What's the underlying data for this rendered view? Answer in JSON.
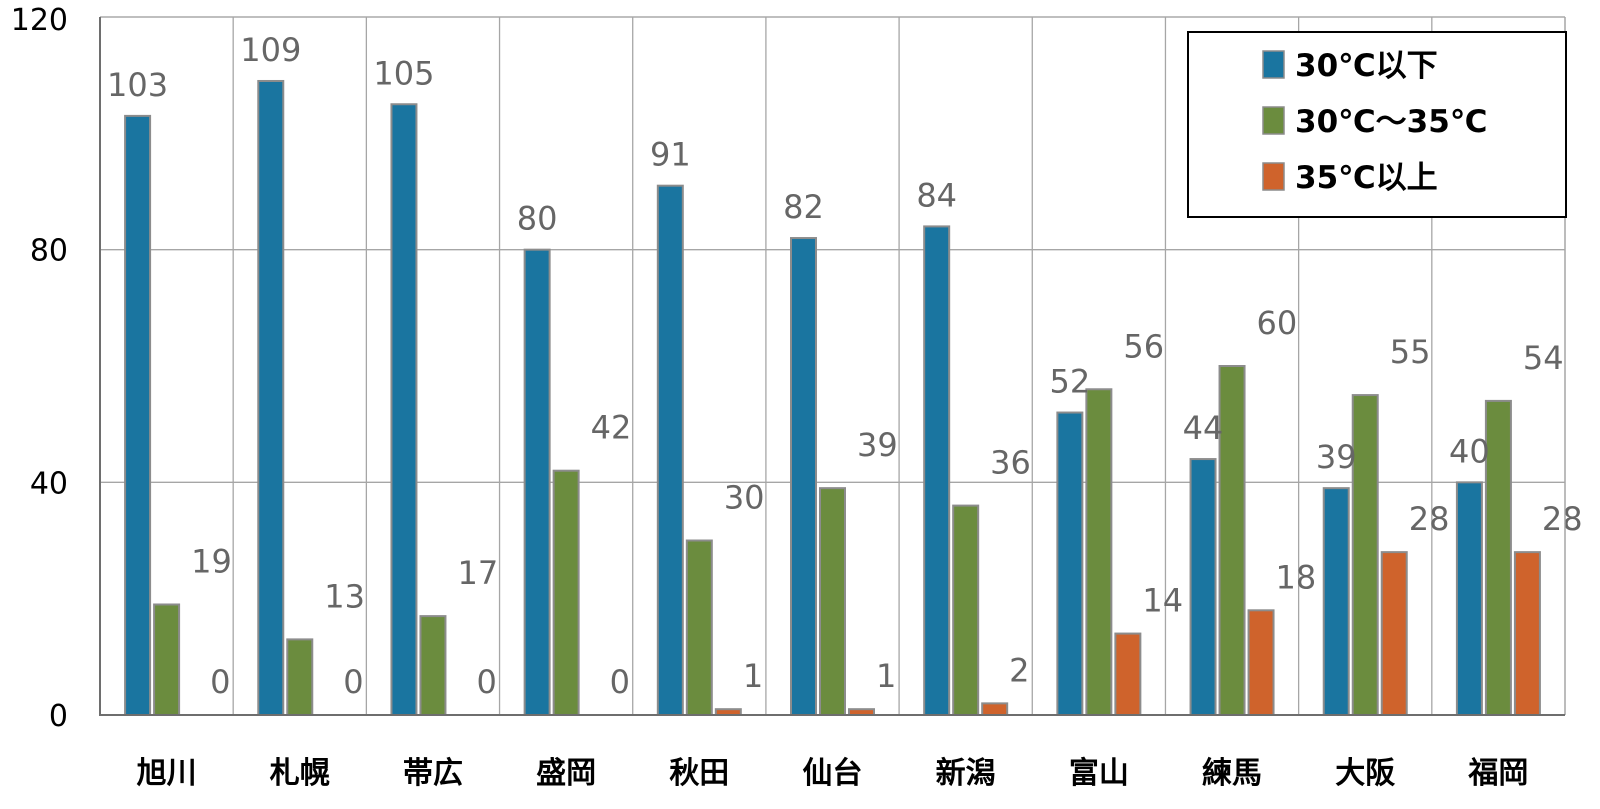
{
  "chart_data": {
    "type": "bar",
    "categories": [
      "旭川",
      "札幌",
      "帯広",
      "盛岡",
      "秋田",
      "仙台",
      "新潟",
      "富山",
      "練馬",
      "大阪",
      "福岡"
    ],
    "series": [
      {
        "name": "30℃以下",
        "color": "#1a75a0",
        "values": [
          103,
          109,
          105,
          80,
          91,
          82,
          84,
          52,
          44,
          39,
          40
        ]
      },
      {
        "name": "30℃～35℃",
        "color": "#6b8c3e",
        "values": [
          19,
          13,
          17,
          42,
          30,
          39,
          36,
          56,
          60,
          55,
          54
        ]
      },
      {
        "name": "35℃以上",
        "color": "#cf632c",
        "values": [
          0,
          0,
          0,
          0,
          1,
          1,
          2,
          14,
          18,
          28,
          28
        ]
      }
    ],
    "yticks": [
      "0",
      "40",
      "80",
      "120"
    ],
    "ylim": [
      0,
      120
    ],
    "grid": true,
    "legend_position": "top-right"
  }
}
